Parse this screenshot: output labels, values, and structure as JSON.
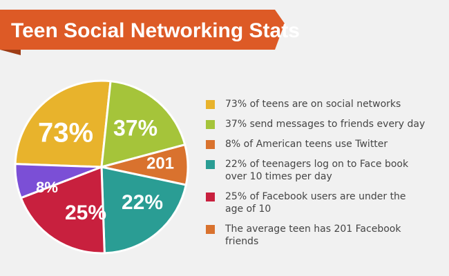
{
  "title": "Teen Social Networking Stats",
  "slices": [
    {
      "label": "73%"
    },
    {
      "label": "37%"
    },
    {
      "label": "201"
    },
    {
      "label": "22%"
    },
    {
      "label": "25%"
    },
    {
      "label": "8%"
    }
  ],
  "legend": [
    {
      "text": "73% of teens are on social networks"
    },
    {
      "text": "37% send messages to friends every day"
    },
    {
      "text": "8% of American teens use Twitter"
    },
    {
      "text": "22% of teenagers log on to Face book over 10 times per day"
    },
    {
      "text": "25% of Facebook users are under the age of 10"
    },
    {
      "text": "The average teen has 201 Facebook friends"
    }
  ]
}
